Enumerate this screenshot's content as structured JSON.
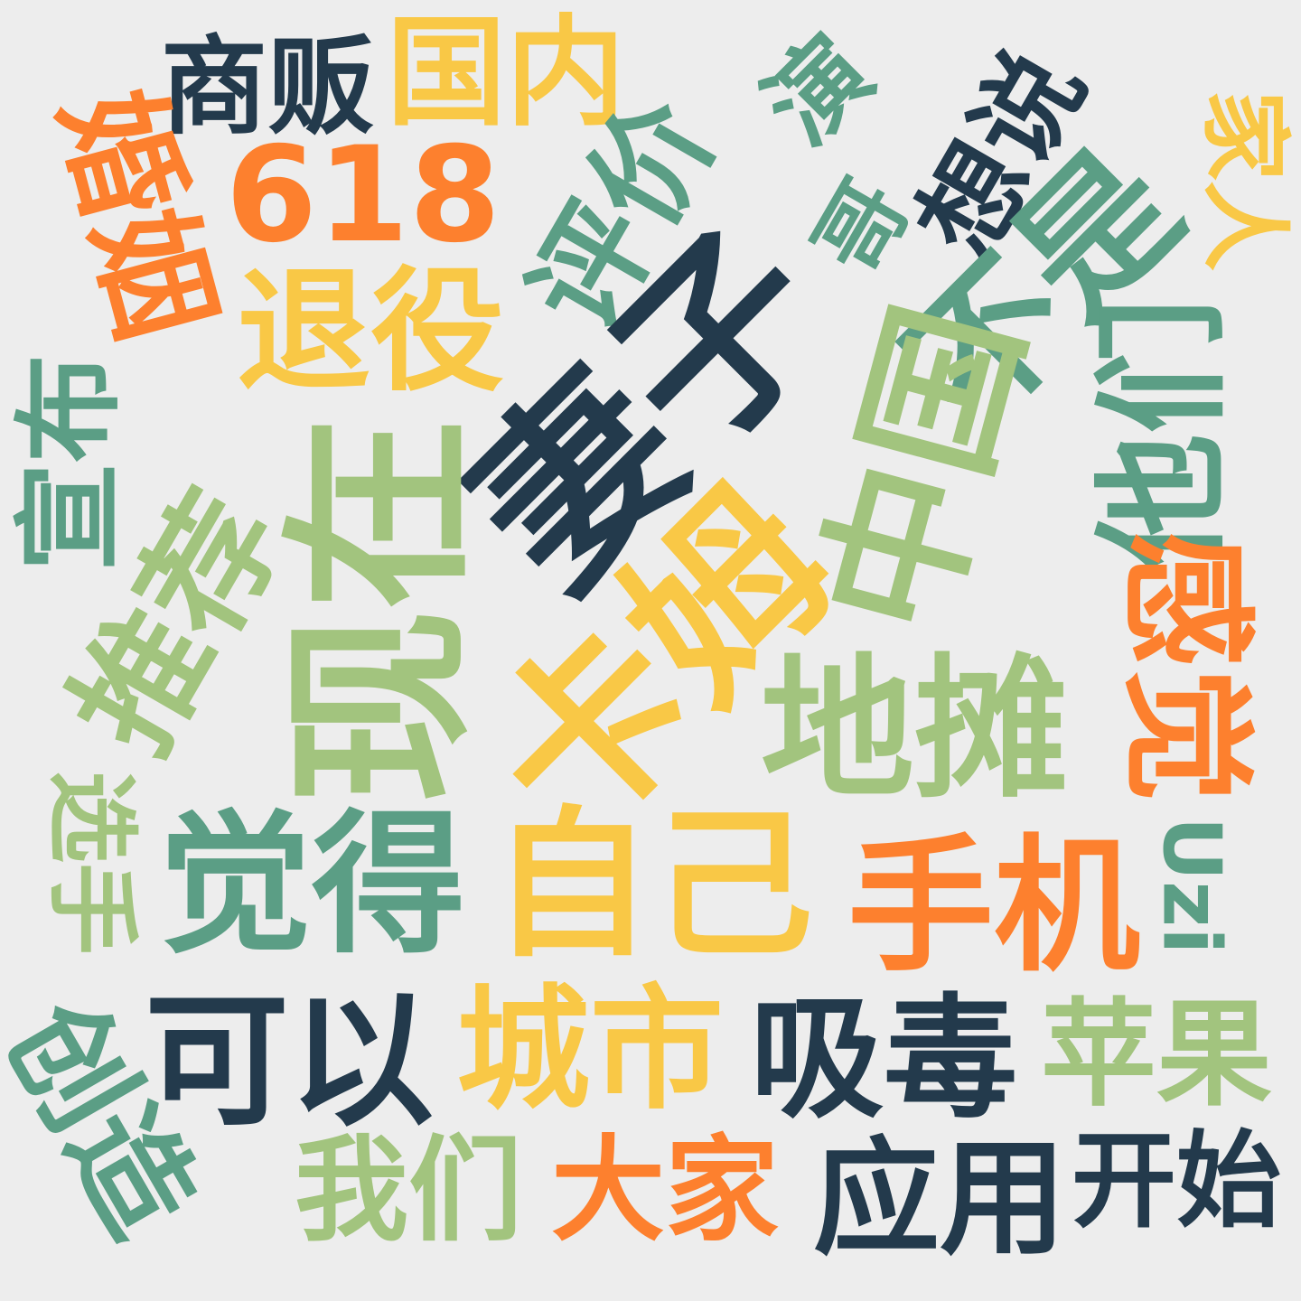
{
  "palette": {
    "background": "#ededed",
    "dark": "#233a4c",
    "yellow": "#f9c846",
    "orange": "#fd802e",
    "teal": "#5b9e85",
    "green": "#a2c47e"
  },
  "words": [
    {
      "text": "商贩",
      "color": "dark"
    },
    {
      "text": "国内",
      "color": "yellow"
    },
    {
      "text": "婚姻",
      "color": "orange"
    },
    {
      "text": "618",
      "color": "orange"
    },
    {
      "text": "评价",
      "color": "teal"
    },
    {
      "text": "演",
      "color": "teal"
    },
    {
      "text": "哥",
      "color": "teal"
    },
    {
      "text": "想说",
      "color": "dark"
    },
    {
      "text": "家人",
      "color": "yellow"
    },
    {
      "text": "退役",
      "color": "yellow"
    },
    {
      "text": "妻子",
      "color": "dark"
    },
    {
      "text": "不是",
      "color": "teal"
    },
    {
      "text": "中国",
      "color": "green"
    },
    {
      "text": "宣布",
      "color": "teal"
    },
    {
      "text": "现在",
      "color": "green"
    },
    {
      "text": "推荐",
      "color": "green"
    },
    {
      "text": "卡姆",
      "color": "yellow"
    },
    {
      "text": "他们",
      "color": "teal"
    },
    {
      "text": "地摊",
      "color": "green"
    },
    {
      "text": "感觉",
      "color": "orange"
    },
    {
      "text": "选手",
      "color": "green"
    },
    {
      "text": "觉得",
      "color": "teal"
    },
    {
      "text": "自己",
      "color": "yellow"
    },
    {
      "text": "手机",
      "color": "orange"
    },
    {
      "text": "Uzi",
      "color": "teal"
    },
    {
      "text": "创造",
      "color": "teal"
    },
    {
      "text": "可以",
      "color": "dark"
    },
    {
      "text": "城市",
      "color": "yellow"
    },
    {
      "text": "吸毒",
      "color": "dark"
    },
    {
      "text": "苹果",
      "color": "green"
    },
    {
      "text": "我们",
      "color": "green"
    },
    {
      "text": "大家",
      "color": "orange"
    },
    {
      "text": "应用",
      "color": "dark"
    },
    {
      "text": "开始",
      "color": "dark"
    }
  ]
}
